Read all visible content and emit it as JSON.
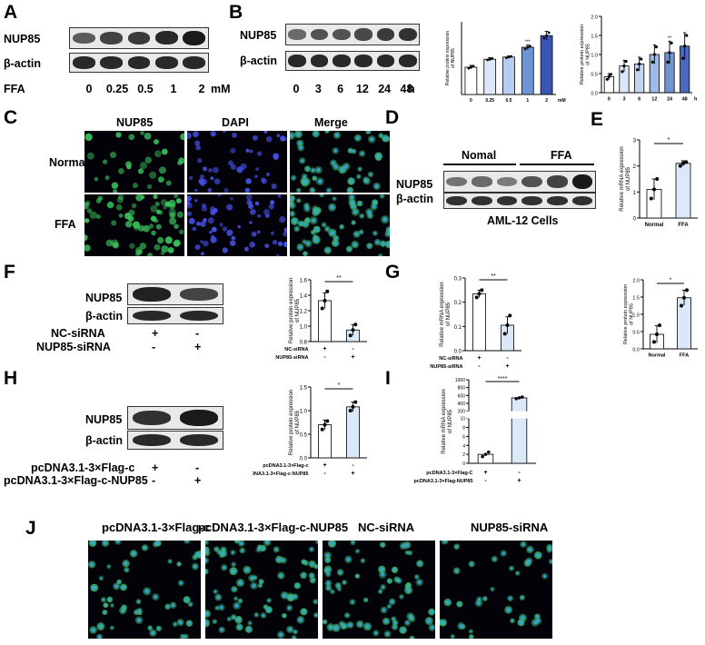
{
  "panels": {
    "A": "A",
    "B": "B",
    "C": "C",
    "D": "D",
    "E": "E",
    "F": "F",
    "G": "G",
    "H": "H",
    "I": "I",
    "J": "J"
  },
  "blot_labels": {
    "nup85": "NUP85",
    "actin": "β-actin",
    "ffa": "FFA",
    "mM": "mM",
    "h": "h"
  },
  "panel_a": {
    "doses": [
      "0",
      "0.25",
      "0.5",
      "1",
      "2"
    ],
    "nup85_intensity": [
      0.55,
      0.7,
      0.75,
      0.85,
      0.95
    ],
    "actin_intensity": [
      0.85,
      0.85,
      0.85,
      0.85,
      0.85
    ]
  },
  "panel_b": {
    "times": [
      "0",
      "3",
      "6",
      "12",
      "24",
      "48"
    ],
    "nup85_intensity": [
      0.45,
      0.6,
      0.6,
      0.65,
      0.75,
      0.8
    ],
    "actin_intensity": [
      0.85,
      0.85,
      0.85,
      0.85,
      0.85,
      0.85
    ]
  },
  "panel_c": {
    "columns": [
      "NUP85",
      "DAPI",
      "Merge"
    ],
    "rows": [
      "Normal",
      "FFA"
    ]
  },
  "panel_d": {
    "groups": [
      "Nomal",
      "FFA"
    ],
    "caption": "AML-12 Cells",
    "nup85_intensity": [
      0.4,
      0.45,
      0.35,
      0.6,
      0.7,
      0.95
    ],
    "actin_intensity": [
      0.8,
      0.8,
      0.8,
      0.8,
      0.8,
      0.8
    ]
  },
  "panel_f": {
    "rows": [
      "NC-siRNA",
      "NUP85-siRNA"
    ],
    "signs": [
      [
        "+",
        "-"
      ],
      [
        "-",
        "+"
      ]
    ]
  },
  "panel_h": {
    "rows": [
      "pcDNA3.1-3×Flag-c",
      "pcDNA3.1-3×Flag-c-NUP85"
    ],
    "signs": [
      [
        "+",
        "-"
      ],
      [
        "-",
        "+"
      ]
    ]
  },
  "panel_j": {
    "columns": [
      "pcDNA3.1-3×Flag-c",
      "pcDNA3.1-3×Flag-c-NUP85",
      "NC-siRNA",
      "NUP85-siRNA"
    ]
  },
  "chart_data": [
    {
      "id": "B_dose",
      "type": "bar",
      "categories": [
        "0",
        "0.25",
        "0.5",
        "1",
        "2"
      ],
      "values": [
        0.75,
        0.97,
        1.03,
        1.3,
        1.62
      ],
      "error": [
        0.05,
        0.04,
        0.03,
        0.06,
        0.12
      ],
      "points": [
        [
          0.72,
          0.75,
          0.78
        ],
        [
          0.95,
          0.97,
          0.99
        ],
        [
          1.01,
          1.03,
          1.05
        ],
        [
          1.25,
          1.3,
          1.33
        ],
        [
          1.55,
          1.62,
          1.7
        ]
      ],
      "ylabel": "Relative protein expression of NUP85",
      "xunit": "mM",
      "ylim": [
        0,
        2
      ],
      "yticks": [],
      "significance": [
        "",
        "",
        "",
        "***",
        ""
      ],
      "colors": [
        "#ffffff",
        "#dbe8f8",
        "#b5cdee",
        "#6c95d6",
        "#3a55b5"
      ]
    },
    {
      "id": "B_time",
      "type": "bar",
      "categories": [
        "0",
        "3",
        "6",
        "12",
        "24",
        "48"
      ],
      "values": [
        0.42,
        0.7,
        0.75,
        1.0,
        1.05,
        1.22
      ],
      "error": [
        0.08,
        0.15,
        0.18,
        0.25,
        0.3,
        0.35
      ],
      "points": [
        [
          0.35,
          0.42,
          0.48
        ],
        [
          0.55,
          0.7,
          0.82
        ],
        [
          0.6,
          0.75,
          0.88
        ],
        [
          0.8,
          1.0,
          1.2
        ],
        [
          0.8,
          1.05,
          1.3
        ],
        [
          0.9,
          1.22,
          1.5
        ]
      ],
      "ylabel": "Relative protein expression of NUP85",
      "xunit": "h",
      "ylim": [
        0,
        2
      ],
      "yticks": [
        "0.0",
        "0.5",
        "1.0",
        "1.5",
        "2.0"
      ],
      "significance": [
        "",
        "",
        "",
        "",
        "**",
        ""
      ],
      "colors": [
        "#ffffff",
        "#dbe8f8",
        "#c3d6f1",
        "#9fbbe5",
        "#7094d4",
        "#4a69c1"
      ]
    },
    {
      "id": "E",
      "type": "bar",
      "categories": [
        "Normal",
        "FFA"
      ],
      "values": [
        1.1,
        2.1
      ],
      "error": [
        0.4,
        0.1
      ],
      "points": [
        [
          0.75,
          1.1,
          1.5
        ],
        [
          2.0,
          2.1,
          2.15
        ]
      ],
      "ylabel": "Relative mRNA expression of NUP85",
      "ylim": [
        0,
        3
      ],
      "yticks": [
        "0",
        "1",
        "2",
        "3"
      ],
      "significance": "*",
      "colors": [
        "#ffffff",
        "#dbe8f8"
      ]
    },
    {
      "id": "F",
      "type": "bar",
      "categories": [
        "NC-siRNA",
        "NUP85-siRNA"
      ],
      "values": [
        1.33,
        0.95
      ],
      "error": [
        0.1,
        0.07
      ],
      "points": [
        [
          1.23,
          1.33,
          1.45
        ],
        [
          0.88,
          0.95,
          1.02
        ]
      ],
      "ylabel": "Relative protein expression of NUP85",
      "ylim": [
        0.8,
        1.6
      ],
      "yticks": [
        "0.8",
        "1.0",
        "1.2",
        "1.4",
        "1.6"
      ],
      "significance": "**",
      "row_labels": [
        "NC-siRNA",
        "NUP85-siRNA"
      ],
      "signs": [
        [
          "+",
          "-"
        ],
        [
          "-",
          "+"
        ]
      ],
      "colors": [
        "#ffffff",
        "#dbe8f8"
      ]
    },
    {
      "id": "G_mrna",
      "type": "bar",
      "categories": [
        "NC-siRNA",
        "NUP85-siRNA"
      ],
      "values": [
        0.235,
        0.105
      ],
      "error": [
        0.015,
        0.035
      ],
      "points": [
        [
          0.22,
          0.235,
          0.25
        ],
        [
          0.07,
          0.105,
          0.145
        ]
      ],
      "ylabel": "Relative mRNA expression of NUP85",
      "ylim": [
        0,
        0.3
      ],
      "yticks": [
        "0.0",
        "0.1",
        "0.2",
        "0.3"
      ],
      "significance": "**",
      "row_labels": [
        "NC-siRNA",
        "NUP85-siRNA"
      ],
      "signs": [
        [
          "+",
          "-"
        ],
        [
          "-",
          "+"
        ]
      ],
      "colors": [
        "#ffffff",
        "#dbe8f8"
      ]
    },
    {
      "id": "G_protein",
      "type": "bar",
      "categories": [
        "Normal",
        "FFA"
      ],
      "values": [
        0.42,
        1.48
      ],
      "error": [
        0.25,
        0.22
      ],
      "points": [
        [
          0.2,
          0.42,
          0.68
        ],
        [
          1.25,
          1.48,
          1.7
        ]
      ],
      "ylabel": "Relative protein expression of NUP85",
      "ylim": [
        0,
        2
      ],
      "yticks": [
        "0.0",
        "0.5",
        "1.0",
        "1.5",
        "2.0"
      ],
      "significance": "*",
      "colors": [
        "#ffffff",
        "#dbe8f8"
      ]
    },
    {
      "id": "H",
      "type": "bar",
      "categories": [
        "pcDNA3.1-3×Flag-c",
        "pcDNA3.1-3×Flag-c-NUP85"
      ],
      "values": [
        0.7,
        1.08
      ],
      "error": [
        0.1,
        0.1
      ],
      "points": [
        [
          0.6,
          0.7,
          0.78
        ],
        [
          1.0,
          1.08,
          1.18
        ]
      ],
      "ylabel": "Relative protein expression of NUP85",
      "ylim": [
        0,
        1.5
      ],
      "yticks": [
        "0.0",
        "0.5",
        "1.0",
        "1.5"
      ],
      "significance": "*",
      "row_labels": [
        "pcDNA3.1-3×Flag-c",
        "pcDNA3.1-3×Flag-c-NUP85"
      ],
      "signs": [
        [
          "+",
          "-"
        ],
        [
          "-",
          "+"
        ]
      ],
      "colors": [
        "#ffffff",
        "#dbe8f8"
      ]
    },
    {
      "id": "I",
      "type": "bar",
      "categories": [
        "pcDNA3.1-3×Flag-C",
        "pcDNA3.1-3×Flag-NUP85"
      ],
      "values": [
        2,
        540
      ],
      "error": [
        0.5,
        20
      ],
      "points": [
        [
          1.5,
          2,
          2.5
        ],
        [
          520,
          540,
          560
        ]
      ],
      "ylabel": "Relative mRNA expression of NUP85",
      "yticks": [
        "0",
        "2",
        "4",
        "6",
        "8",
        "10",
        "200",
        "400",
        "600",
        "800",
        "1000"
      ],
      "axis_break": [
        10,
        200
      ],
      "significance": "****",
      "row_labels": [
        "pcDNA3.1-3×Flag-C",
        "pcDNA3.1-3×Flag-NUP85"
      ],
      "signs": [
        [
          "+",
          "-"
        ],
        [
          "-",
          "+"
        ]
      ],
      "colors": [
        "#ffffff",
        "#dbe8f8"
      ]
    }
  ]
}
